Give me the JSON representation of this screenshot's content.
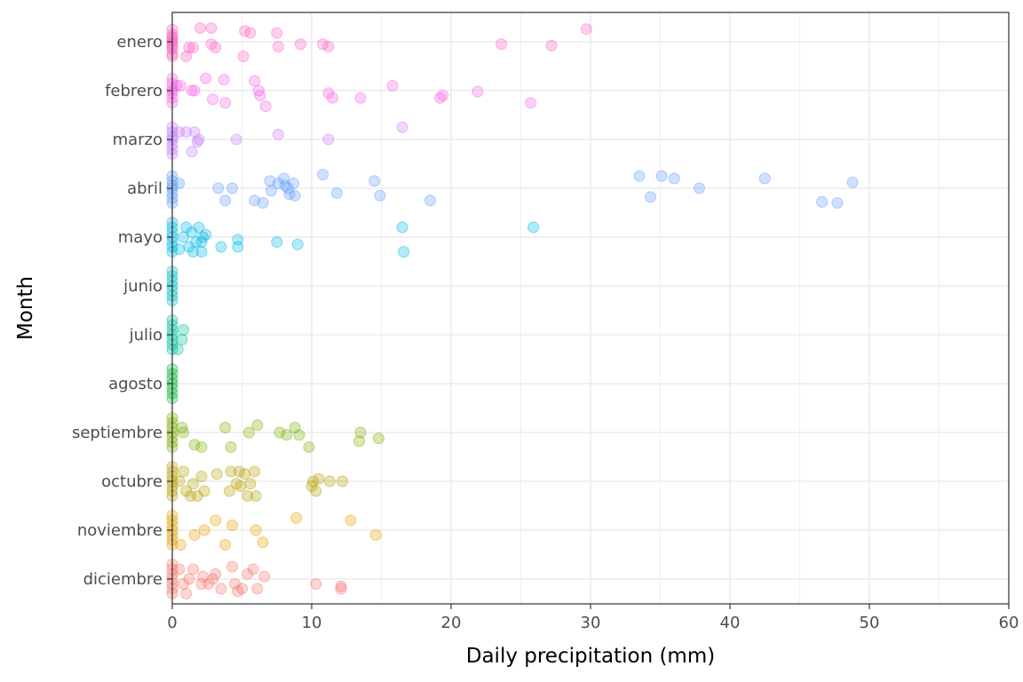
{
  "chart_data": {
    "type": "scatter",
    "title": "",
    "xlabel": "Daily precipitation (mm)",
    "ylabel": "Month",
    "xlim": [
      0,
      60
    ],
    "x_ticks": [
      0,
      10,
      20,
      30,
      40,
      50,
      60
    ],
    "grid": true,
    "legend": "none",
    "jitter": "vertical",
    "point_alpha": 0.3,
    "categories": [
      "enero",
      "febrero",
      "marzo",
      "abril",
      "mayo",
      "junio",
      "julio",
      "agosto",
      "septiembre",
      "octubre",
      "noviembre",
      "diciembre"
    ],
    "series": [
      {
        "category": "enero",
        "color": "#FF61C3",
        "points": [
          [
            0,
            0.15
          ],
          [
            0,
            0.1
          ],
          [
            0,
            0.05
          ],
          [
            0,
            0
          ],
          [
            0,
            -0.05
          ],
          [
            0,
            -0.1
          ],
          [
            0,
            -0.15
          ],
          [
            0,
            -0.25
          ],
          [
            0,
            0.25
          ],
          [
            0,
            0.3
          ],
          [
            1,
            0.3
          ],
          [
            1.2,
            0.12
          ],
          [
            1.5,
            0.12
          ],
          [
            2,
            -0.28
          ],
          [
            2.8,
            -0.28
          ],
          [
            2.8,
            0.05
          ],
          [
            3.1,
            0.12
          ],
          [
            5.1,
            0.3
          ],
          [
            5.2,
            -0.22
          ],
          [
            5.6,
            -0.18
          ],
          [
            7.5,
            -0.18
          ],
          [
            7.6,
            0.1
          ],
          [
            9.2,
            0.05
          ],
          [
            10.8,
            0.05
          ],
          [
            11.2,
            0.1
          ],
          [
            23.6,
            0.05
          ],
          [
            27.2,
            0.08
          ],
          [
            29.7,
            -0.26
          ]
        ]
      },
      {
        "category": "febrero",
        "color": "#F564E3",
        "points": [
          [
            0,
            0.25
          ],
          [
            0,
            0.15
          ],
          [
            0,
            0.05
          ],
          [
            0,
            0
          ],
          [
            0,
            -0.05
          ],
          [
            0,
            -0.15
          ],
          [
            0,
            -0.25
          ],
          [
            0.3,
            -0.1
          ],
          [
            0.6,
            -0.1
          ],
          [
            1.4,
            0
          ],
          [
            1.6,
            0
          ],
          [
            2.4,
            -0.25
          ],
          [
            2.9,
            0.18
          ],
          [
            3.7,
            -0.22
          ],
          [
            3.8,
            0.25
          ],
          [
            5.9,
            -0.2
          ],
          [
            6.2,
            0
          ],
          [
            6.3,
            0.1
          ],
          [
            6.7,
            0.32
          ],
          [
            11.2,
            0.05
          ],
          [
            11.5,
            0.15
          ],
          [
            13.5,
            0.15
          ],
          [
            15.8,
            -0.1
          ],
          [
            19.2,
            0.15
          ],
          [
            19.4,
            0.1
          ],
          [
            21.9,
            0.02
          ],
          [
            25.7,
            0.25
          ]
        ]
      },
      {
        "category": "marzo",
        "color": "#C77CFF",
        "points": [
          [
            0,
            0.3
          ],
          [
            0,
            0.2
          ],
          [
            0,
            0.1
          ],
          [
            0,
            0
          ],
          [
            0,
            -0.05
          ],
          [
            0,
            -0.15
          ],
          [
            0,
            -0.25
          ],
          [
            0.5,
            -0.15
          ],
          [
            1,
            -0.15
          ],
          [
            1.4,
            0.25
          ],
          [
            1.8,
            0.05
          ],
          [
            1.9,
            0
          ],
          [
            1.6,
            -0.15
          ],
          [
            4.6,
            0
          ],
          [
            7.6,
            -0.1
          ],
          [
            11.2,
            0
          ],
          [
            16.5,
            -0.25
          ]
        ]
      },
      {
        "category": "abril",
        "color": "#619CFF",
        "points": [
          [
            0,
            0.3
          ],
          [
            0,
            0.2
          ],
          [
            0,
            0.1
          ],
          [
            0,
            0
          ],
          [
            0,
            -0.05
          ],
          [
            0,
            -0.15
          ],
          [
            0,
            -0.25
          ],
          [
            0.5,
            -0.1
          ],
          [
            3.3,
            0
          ],
          [
            3.8,
            0.25
          ],
          [
            4.3,
            0
          ],
          [
            5.9,
            0.25
          ],
          [
            6.5,
            0.3
          ],
          [
            7,
            -0.15
          ],
          [
            7.1,
            0.05
          ],
          [
            7.6,
            -0.1
          ],
          [
            8,
            -0.2
          ],
          [
            8.1,
            -0.05
          ],
          [
            8.3,
            0
          ],
          [
            8.4,
            0.12
          ],
          [
            8.7,
            -0.1
          ],
          [
            8.8,
            0.15
          ],
          [
            10.8,
            -0.28
          ],
          [
            11.8,
            0.1
          ],
          [
            14.5,
            -0.15
          ],
          [
            14.9,
            0.15
          ],
          [
            18.5,
            0.25
          ],
          [
            33.5,
            -0.25
          ],
          [
            34.3,
            0.18
          ],
          [
            35.1,
            -0.25
          ],
          [
            36,
            -0.2
          ],
          [
            37.8,
            0
          ],
          [
            42.5,
            -0.2
          ],
          [
            46.6,
            0.28
          ],
          [
            47.7,
            0.3
          ],
          [
            48.8,
            -0.12
          ]
        ]
      },
      {
        "category": "mayo",
        "color": "#00B9E3",
        "points": [
          [
            0,
            0.3
          ],
          [
            0,
            0.2
          ],
          [
            0,
            0.1
          ],
          [
            0,
            0
          ],
          [
            0,
            -0.1
          ],
          [
            0,
            -0.2
          ],
          [
            0,
            -0.3
          ],
          [
            0.5,
            0.25
          ],
          [
            0.8,
            0
          ],
          [
            1,
            -0.2
          ],
          [
            1.2,
            0.2
          ],
          [
            1.4,
            -0.1
          ],
          [
            1.5,
            0.3
          ],
          [
            1.7,
            0.1
          ],
          [
            1.9,
            -0.2
          ],
          [
            2.1,
            0.3
          ],
          [
            2.1,
            0.1
          ],
          [
            2.2,
            0
          ],
          [
            2.4,
            -0.05
          ],
          [
            3.5,
            0.2
          ],
          [
            4.7,
            0.2
          ],
          [
            4.7,
            0.05
          ],
          [
            7.5,
            0.1
          ],
          [
            9,
            0.15
          ],
          [
            16.5,
            -0.2
          ],
          [
            16.6,
            0.3
          ],
          [
            25.9,
            -0.2
          ]
        ]
      },
      {
        "category": "junio",
        "color": "#00BFC4",
        "points": [
          [
            0,
            0.3
          ],
          [
            0,
            0.2
          ],
          [
            0,
            0.1
          ],
          [
            0,
            0
          ],
          [
            0,
            -0.1
          ],
          [
            0,
            -0.2
          ],
          [
            0,
            -0.3
          ]
        ]
      },
      {
        "category": "julio",
        "color": "#00C19A",
        "points": [
          [
            0,
            0.3
          ],
          [
            0,
            0.2
          ],
          [
            0,
            0.1
          ],
          [
            0,
            0
          ],
          [
            0,
            -0.1
          ],
          [
            0,
            -0.2
          ],
          [
            0,
            -0.3
          ],
          [
            0.4,
            0.3
          ],
          [
            0.7,
            0.1
          ],
          [
            0.8,
            -0.1
          ]
        ]
      },
      {
        "category": "agosto",
        "color": "#00BA38",
        "points": [
          [
            0,
            0.3
          ],
          [
            0,
            0.2
          ],
          [
            0,
            0.1
          ],
          [
            0,
            0
          ],
          [
            0,
            -0.1
          ],
          [
            0,
            -0.2
          ],
          [
            0,
            -0.3
          ]
        ]
      },
      {
        "category": "septiembre",
        "color": "#7CAE00",
        "points": [
          [
            0,
            0.3
          ],
          [
            0,
            0.2
          ],
          [
            0,
            0.1
          ],
          [
            0,
            0
          ],
          [
            0,
            -0.1
          ],
          [
            0,
            -0.2
          ],
          [
            0,
            -0.3
          ],
          [
            0.7,
            -0.1
          ],
          [
            0.8,
            0
          ],
          [
            1.6,
            0.25
          ],
          [
            2.1,
            0.3
          ],
          [
            3.8,
            -0.1
          ],
          [
            4.2,
            0.3
          ],
          [
            5.5,
            0
          ],
          [
            6.1,
            -0.15
          ],
          [
            7.7,
            0
          ],
          [
            8.2,
            0.05
          ],
          [
            8.8,
            -0.1
          ],
          [
            9.1,
            0.05
          ],
          [
            9.8,
            0.3
          ],
          [
            13.4,
            0.18
          ],
          [
            13.5,
            0
          ],
          [
            14.8,
            0.12
          ]
        ]
      },
      {
        "category": "octubre",
        "color": "#B79F00",
        "points": [
          [
            0,
            0.3
          ],
          [
            0,
            0.2
          ],
          [
            0,
            0.1
          ],
          [
            0,
            0
          ],
          [
            0,
            -0.1
          ],
          [
            0,
            -0.2
          ],
          [
            0,
            -0.3
          ],
          [
            0.5,
            0
          ],
          [
            0.8,
            -0.2
          ],
          [
            1,
            0.2
          ],
          [
            1.3,
            0.3
          ],
          [
            1.5,
            0.05
          ],
          [
            1.8,
            0.3
          ],
          [
            2.1,
            -0.1
          ],
          [
            2.3,
            0.2
          ],
          [
            3.2,
            -0.15
          ],
          [
            4.1,
            0.2
          ],
          [
            4.2,
            -0.2
          ],
          [
            4.6,
            0.05
          ],
          [
            4.8,
            -0.2
          ],
          [
            4.9,
            0.1
          ],
          [
            5.2,
            -0.15
          ],
          [
            5.4,
            0.3
          ],
          [
            5.6,
            0.05
          ],
          [
            5.9,
            -0.2
          ],
          [
            6,
            0.3
          ],
          [
            10,
            0.1
          ],
          [
            10.1,
            0
          ],
          [
            10.3,
            0.2
          ],
          [
            10.5,
            -0.05
          ],
          [
            11.3,
            0
          ],
          [
            12.2,
            0
          ]
        ]
      },
      {
        "category": "noviembre",
        "color": "#E69F00",
        "points": [
          [
            0,
            0.3
          ],
          [
            0,
            0.2
          ],
          [
            0,
            0.1
          ],
          [
            0,
            0
          ],
          [
            0,
            -0.1
          ],
          [
            0,
            -0.2
          ],
          [
            0,
            -0.3
          ],
          [
            0.6,
            0.3
          ],
          [
            1.6,
            0.1
          ],
          [
            2.3,
            0
          ],
          [
            3.1,
            -0.2
          ],
          [
            3.8,
            0.3
          ],
          [
            4.3,
            -0.1
          ],
          [
            6,
            0
          ],
          [
            6.5,
            0.25
          ],
          [
            8.9,
            -0.25
          ],
          [
            12.8,
            -0.2
          ],
          [
            14.6,
            0.1
          ]
        ]
      },
      {
        "category": "diciembre",
        "color": "#F8766D",
        "points": [
          [
            0,
            0.3
          ],
          [
            0,
            0.2
          ],
          [
            0,
            0.1
          ],
          [
            0,
            0
          ],
          [
            0,
            -0.1
          ],
          [
            0,
            -0.2
          ],
          [
            0,
            -0.3
          ],
          [
            0.5,
            -0.2
          ],
          [
            0.8,
            0.1
          ],
          [
            1,
            0.3
          ],
          [
            1.2,
            0
          ],
          [
            1.5,
            -0.2
          ],
          [
            2.1,
            0.1
          ],
          [
            2.2,
            -0.05
          ],
          [
            2.6,
            0.1
          ],
          [
            2.9,
            0
          ],
          [
            3.1,
            -0.1
          ],
          [
            3.5,
            0.2
          ],
          [
            4.3,
            -0.25
          ],
          [
            4.5,
            0.1
          ],
          [
            4.7,
            0.25
          ],
          [
            5,
            0.2
          ],
          [
            5.4,
            -0.1
          ],
          [
            5.8,
            -0.2
          ],
          [
            6.1,
            0.2
          ],
          [
            6.6,
            -0.05
          ],
          [
            10.3,
            0.1
          ],
          [
            12.1,
            0.2
          ],
          [
            12.1,
            0.15
          ]
        ]
      }
    ]
  }
}
